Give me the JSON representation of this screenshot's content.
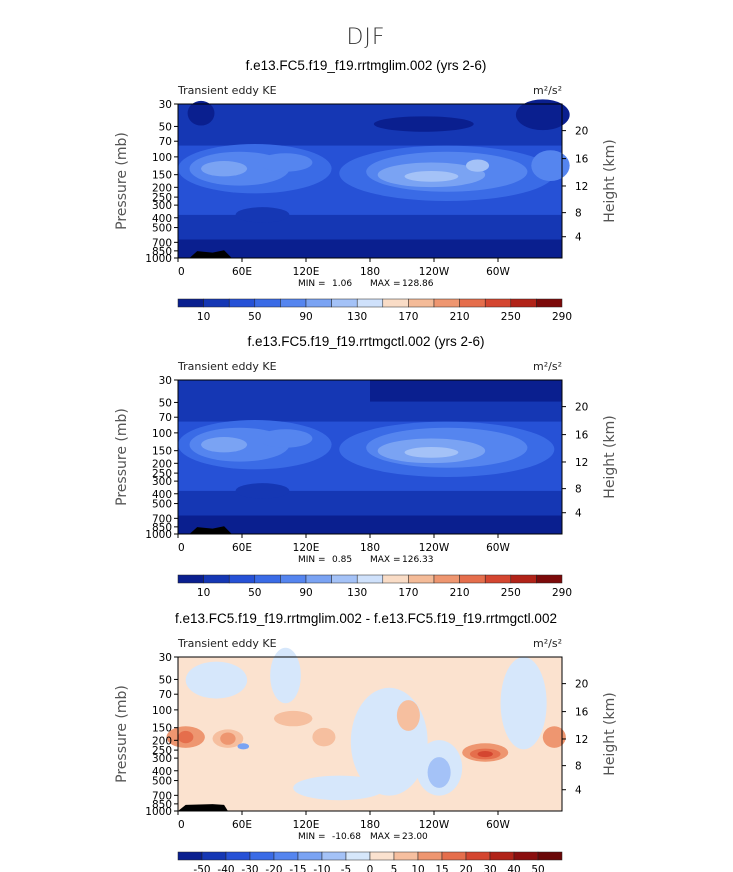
{
  "figure_title": "DJF",
  "chart_data": [
    {
      "type": "heatmap",
      "title": "f.e13.FC5.f19_f19.rrtmglim.002 (yrs 2-6)",
      "left_label": "Transient eddy KE",
      "units": "m²/s²",
      "ylabel": "Pressure (mb)",
      "y2label": "Height (km)",
      "x_ticks": [
        "0",
        "60E",
        "120E",
        "180",
        "120W",
        "60W"
      ],
      "y_ticks": [
        "30",
        "50",
        "70",
        "100",
        "150",
        "200",
        "250",
        "300",
        "400",
        "500",
        "700",
        "850",
        "1000"
      ],
      "y2_ticks": [
        "20",
        "16",
        "12",
        "8",
        "4"
      ],
      "min_label": "MIN =",
      "min_value": "1.06",
      "max_label": "MAX =",
      "max_value": "128.86",
      "colorbar_labels": [
        "10",
        "50",
        "90",
        "130",
        "170",
        "210",
        "250",
        "290"
      ]
    },
    {
      "type": "heatmap",
      "title": "f.e13.FC5.f19_f19.rrtmgctl.002 (yrs 2-6)",
      "left_label": "Transient eddy KE",
      "units": "m²/s²",
      "ylabel": "Pressure (mb)",
      "y2label": "Height (km)",
      "x_ticks": [
        "0",
        "60E",
        "120E",
        "180",
        "120W",
        "60W"
      ],
      "y_ticks": [
        "30",
        "50",
        "70",
        "100",
        "150",
        "200",
        "250",
        "300",
        "400",
        "500",
        "700",
        "850",
        "1000"
      ],
      "y2_ticks": [
        "20",
        "16",
        "12",
        "8",
        "4"
      ],
      "min_label": "MIN =",
      "min_value": "0.85",
      "max_label": "MAX =",
      "max_value": "126.33",
      "colorbar_labels": [
        "10",
        "50",
        "90",
        "130",
        "170",
        "210",
        "250",
        "290"
      ]
    },
    {
      "type": "heatmap",
      "title": "f.e13.FC5.f19_f19.rrtmglim.002 - f.e13.FC5.f19_f19.rrtmgctl.002",
      "left_label": "Transient eddy KE",
      "units": "m²/s²",
      "ylabel": "Pressure (mb)",
      "y2label": "Height (km)",
      "x_ticks": [
        "0",
        "60E",
        "120E",
        "180",
        "120W",
        "60W"
      ],
      "y_ticks": [
        "30",
        "50",
        "70",
        "100",
        "150",
        "200",
        "250",
        "300",
        "400",
        "500",
        "700",
        "850",
        "1000"
      ],
      "y2_ticks": [
        "20",
        "16",
        "12",
        "8",
        "4"
      ],
      "min_label": "MIN =",
      "min_value": "-10.68",
      "max_label": "MAX =",
      "max_value": "23.00",
      "colorbar_labels": [
        "-50",
        "-40",
        "-30",
        "-20",
        "-15",
        "-10",
        "-5",
        "0",
        "5",
        "10",
        "15",
        "20",
        "30",
        "40",
        "50"
      ]
    }
  ],
  "colors": {
    "seq": [
      "#0a1f8f",
      "#1537b4",
      "#2651d6",
      "#3a6be6",
      "#5585ef",
      "#7aa3f3",
      "#a4c2f7",
      "#cfe1fb",
      "#f9dcc6",
      "#f4bb98",
      "#ee9670",
      "#e56e4c",
      "#d44630",
      "#b12318",
      "#7c0a0a"
    ],
    "div": [
      "#0a1f8f",
      "#1537b4",
      "#2651d6",
      "#3a6be6",
      "#5585ef",
      "#7aa3f3",
      "#a4c2f7",
      "#d6e7fb",
      "#fbe2cf",
      "#f6bf9f",
      "#ee9670",
      "#e56e4c",
      "#d44630",
      "#b12318",
      "#8a0e0e",
      "#6a0707"
    ]
  }
}
